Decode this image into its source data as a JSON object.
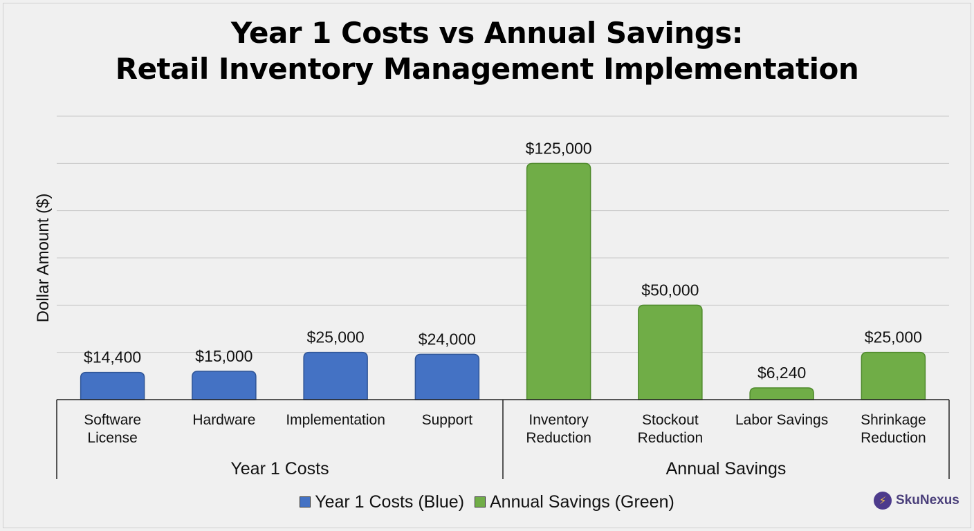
{
  "chart_data": {
    "type": "bar",
    "title_line1": "Year 1 Costs vs Annual Savings:",
    "title_line2": "Retail Inventory Management Implementation",
    "ylabel": "Dollar Amount ($)",
    "xlabel": "",
    "ylim": [
      0,
      150000
    ],
    "grid": true,
    "legend_position": "bottom",
    "groups": [
      {
        "label": "Year 1 Costs",
        "color": "#4472C4",
        "categories": [
          [
            "Software",
            "License"
          ],
          [
            "Hardware"
          ],
          [
            "Implementation"
          ],
          [
            "Support"
          ]
        ],
        "values": [
          14400,
          15000,
          25000,
          24000
        ],
        "data_labels": [
          "$14,400",
          "$15,000",
          "$25,000",
          "$24,000"
        ]
      },
      {
        "label": "Annual Savings",
        "color": "#70AD47",
        "categories": [
          [
            "Inventory",
            "Reduction"
          ],
          [
            "Stockout",
            "Reduction"
          ],
          [
            "Labor Savings"
          ],
          [
            "Shrinkage",
            "Reduction"
          ]
        ],
        "values": [
          125000,
          50000,
          6240,
          25000
        ],
        "data_labels": [
          "$125,000",
          "$50,000",
          "$6,240",
          "$25,000"
        ]
      }
    ],
    "legend": [
      {
        "label": "Year 1 Costs (Blue)",
        "color": "#4472C4"
      },
      {
        "label": "Annual Savings (Green)",
        "color": "#70AD47"
      }
    ]
  },
  "brand": {
    "name": "SkuNexus"
  }
}
